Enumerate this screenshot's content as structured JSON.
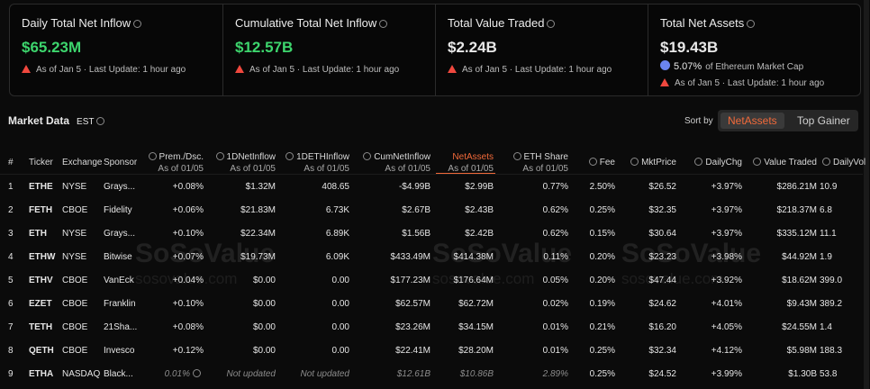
{
  "cards": [
    {
      "title": "Daily Total Net Inflow",
      "value": "$65.23M",
      "note": "As of Jan 5 · Last Update: 1 hour ago"
    },
    {
      "title": "Cumulative Total Net Inflow",
      "value": "$12.57B",
      "note": "As of Jan 5 · Last Update: 1 hour ago"
    },
    {
      "title": "Total Value Traded",
      "value": "$2.24B",
      "note": "As of Jan 5 · Last Update: 1 hour ago"
    },
    {
      "title": "Total Net Assets",
      "value": "$19.43B",
      "market_cap_share": "5.07%",
      "market_cap_label": "of Ethereum Market Cap",
      "note": "As of Jan 5 · Last Update: 1 hour ago"
    }
  ],
  "market_data": {
    "title": "Market Data",
    "timezone": "EST",
    "sort_label": "Sort by",
    "sort_options": [
      "NetAssets",
      "Top Gainer"
    ]
  },
  "table": {
    "columns": [
      {
        "label": "#"
      },
      {
        "label": "Ticker"
      },
      {
        "label": "Exchange"
      },
      {
        "label": "Sponsor"
      },
      {
        "label": "Prem./Dsc.",
        "sub": "As of 01/05"
      },
      {
        "label": "1DNetInflow",
        "sub": "As of 01/05"
      },
      {
        "label": "1DETHInflow",
        "sub": "As of 01/05"
      },
      {
        "label": "CumNetInflow",
        "sub": "As of 01/05"
      },
      {
        "label": "NetAssets",
        "sub": "As of 01/05"
      },
      {
        "label": "ETH Share",
        "sub": "As of 01/05"
      },
      {
        "label": "Fee"
      },
      {
        "label": "MktPrice"
      },
      {
        "label": "DailyChg"
      },
      {
        "label": "Value Traded"
      },
      {
        "label": "DailyVol"
      }
    ],
    "rows": [
      [
        "1",
        "ETHE",
        "NYSE",
        "Grays...",
        "+0.08%",
        "$1.32M",
        "408.65",
        "-$4.99B",
        "$2.99B",
        "0.77%",
        "2.50%",
        "$26.52",
        "+3.97%",
        "$286.21M",
        "10.9"
      ],
      [
        "2",
        "FETH",
        "CBOE",
        "Fidelity",
        "+0.06%",
        "$21.83M",
        "6.73K",
        "$2.67B",
        "$2.43B",
        "0.62%",
        "0.25%",
        "$32.35",
        "+3.97%",
        "$218.37M",
        "6.8"
      ],
      [
        "3",
        "ETH",
        "NYSE",
        "Grays...",
        "+0.10%",
        "$22.34M",
        "6.89K",
        "$1.56B",
        "$2.42B",
        "0.62%",
        "0.15%",
        "$30.64",
        "+3.97%",
        "$335.12M",
        "11.1"
      ],
      [
        "4",
        "ETHW",
        "NYSE",
        "Bitwise",
        "+0.07%",
        "$19.73M",
        "6.09K",
        "$433.49M",
        "$414.38M",
        "0.11%",
        "0.20%",
        "$23.23",
        "+3.98%",
        "$44.92M",
        "1.9"
      ],
      [
        "5",
        "ETHV",
        "CBOE",
        "VanEck",
        "+0.04%",
        "$0.00",
        "0.00",
        "$177.23M",
        "$176.64M",
        "0.05%",
        "0.20%",
        "$47.44",
        "+3.92%",
        "$18.62M",
        "399.0"
      ],
      [
        "6",
        "EZET",
        "CBOE",
        "Franklin",
        "+0.10%",
        "$0.00",
        "0.00",
        "$62.57M",
        "$62.72M",
        "0.02%",
        "0.19%",
        "$24.62",
        "+4.01%",
        "$9.43M",
        "389.2"
      ],
      [
        "7",
        "TETH",
        "CBOE",
        "21Sha...",
        "+0.08%",
        "$0.00",
        "0.00",
        "$23.26M",
        "$34.15M",
        "0.01%",
        "0.21%",
        "$16.20",
        "+4.05%",
        "$24.55M",
        "1.4"
      ],
      [
        "8",
        "QETH",
        "CBOE",
        "Invesco",
        "+0.12%",
        "$0.00",
        "0.00",
        "$22.41M",
        "$28.20M",
        "0.01%",
        "0.25%",
        "$32.34",
        "+4.12%",
        "$5.98M",
        "188.3"
      ],
      [
        "9",
        "ETHA",
        "NASDAQ",
        "Black...",
        "0.01%",
        "Not updated",
        "Not updated",
        "$12.61B",
        "$10.86B",
        "2.89%",
        "0.25%",
        "$24.52",
        "+3.99%",
        "$1.30B",
        "53.8"
      ]
    ]
  },
  "watermark": {
    "brand": "SoSoValue",
    "url": "sosovalue.com"
  }
}
